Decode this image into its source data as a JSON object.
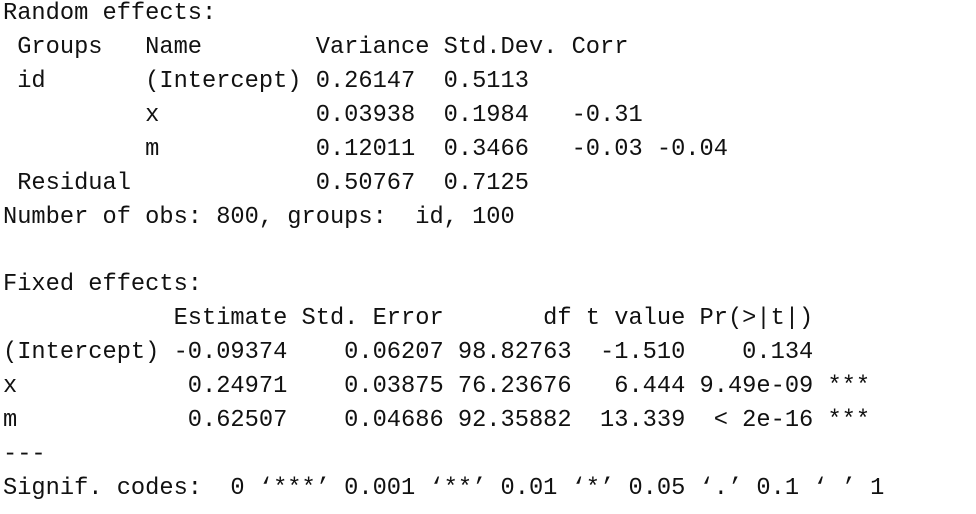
{
  "random_effects": {
    "title": "Random effects:",
    "header": " Groups   Name        Variance Std.Dev. Corr",
    "rows": [
      " id       (Intercept) 0.26147  0.5113",
      "          x           0.03938  0.1984   -0.31",
      "          m           0.12011  0.3466   -0.03 -0.04",
      " Residual             0.50767  0.7125"
    ],
    "summary": "Number of obs: 800, groups:  id, 100"
  },
  "fixed_effects": {
    "title": "Fixed effects:",
    "header": "            Estimate Std. Error       df t value Pr(>|t|)",
    "rows": [
      "(Intercept) -0.09374    0.06207 98.82763  -1.510    0.134",
      "x            0.24971    0.03875 76.23676   6.444 9.49e-09 ***",
      "m            0.62507    0.04686 92.35882  13.339  < 2e-16 ***"
    ],
    "separator": "---",
    "signif_codes": "Signif. codes:  0 ‘***’ 0.001 ‘**’ 0.01 ‘*’ 0.05 ‘.’ 0.1 ‘ ’ 1"
  }
}
